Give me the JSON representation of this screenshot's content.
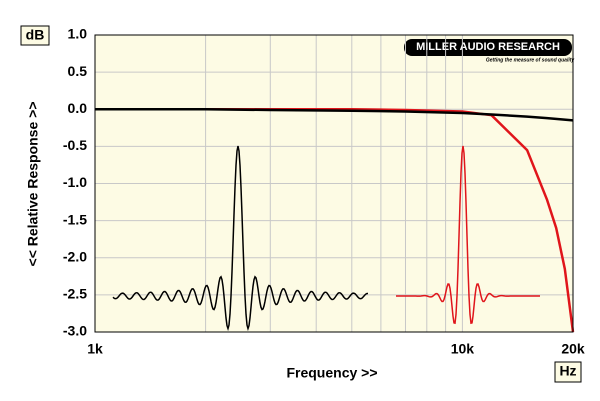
{
  "chart_data": {
    "type": "line",
    "x_label": "Frequency >>",
    "y_label": "<< Relative Response >>",
    "y_unit": "dB",
    "x_unit": "Hz",
    "logo": "MILLER AUDIO RESEARCH",
    "tagline": "Getting the measure of sound quality",
    "x_log": true,
    "xlim": [
      1000,
      20000
    ],
    "xticks": [
      {
        "value": 1000,
        "label": "1k"
      },
      {
        "value": 10000,
        "label": "10k"
      },
      {
        "value": 20000,
        "label": "20k"
      }
    ],
    "xgrid": [
      1000,
      2000,
      3000,
      4000,
      5000,
      6000,
      7000,
      8000,
      9000,
      10000,
      20000
    ],
    "ylim": [
      -3,
      1
    ],
    "yticks": [
      {
        "value": 1,
        "label": "1.0"
      },
      0.5,
      {
        "value": 0,
        "label": "0.0"
      },
      -0.5,
      {
        "value": -1,
        "label": "-1.0"
      },
      -1.5,
      {
        "value": -2,
        "label": "-2.0"
      },
      -2.5,
      {
        "value": -3,
        "label": "-3.0"
      }
    ],
    "grid": true,
    "series": [
      {
        "color": "#000000",
        "x": [
          1000,
          2000,
          3000,
          5000,
          7000,
          10000,
          12000,
          15000,
          17000,
          20000
        ],
        "values": [
          0,
          0,
          -0.01,
          -0.02,
          -0.03,
          -0.05,
          -0.07,
          -0.1,
          -0.12,
          -0.15
        ]
      },
      {
        "color": "#e0151b",
        "x": [
          1000,
          2000,
          3000,
          5000,
          7000,
          10000,
          12000,
          15000,
          17000,
          18000,
          19000,
          20000
        ],
        "values": [
          0,
          0,
          0,
          0,
          -0.01,
          -0.03,
          -0.08,
          -0.55,
          -1.22,
          -1.6,
          -2.15,
          -3.0
        ]
      }
    ]
  }
}
